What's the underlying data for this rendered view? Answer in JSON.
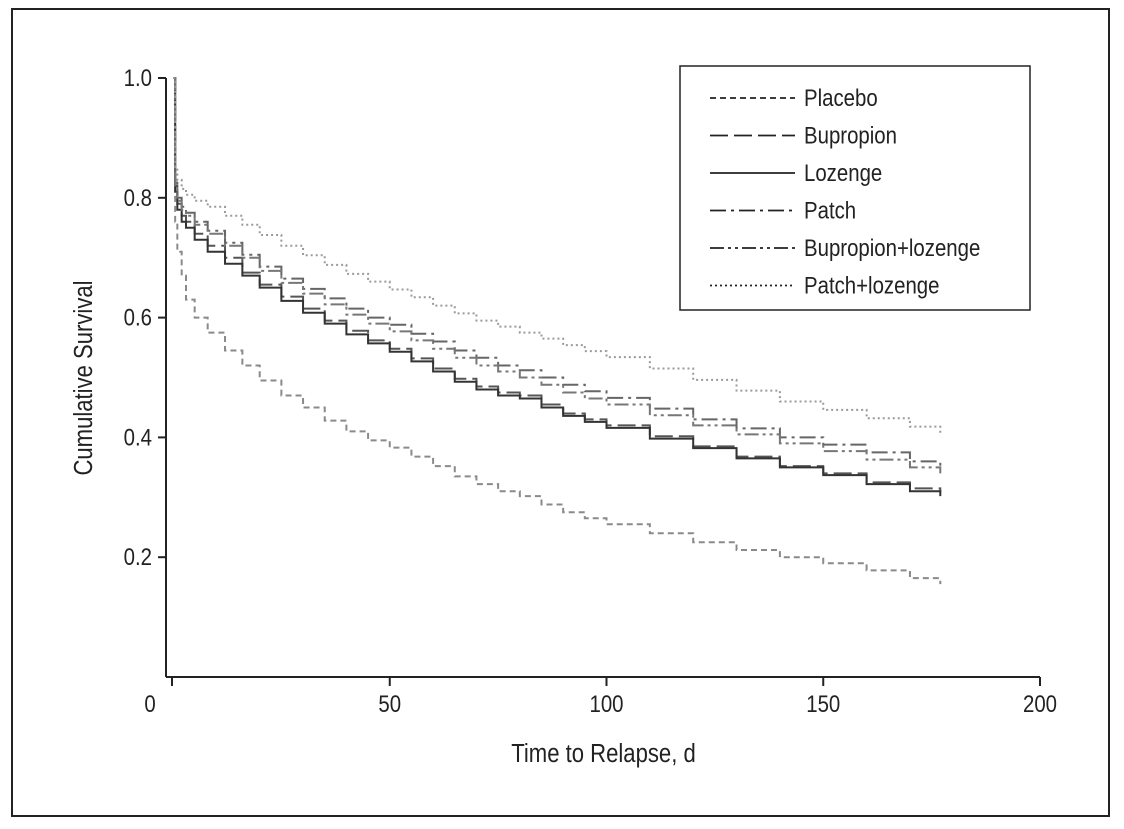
{
  "chart_data": {
    "type": "line",
    "xlabel": "Time to Relapse, d",
    "ylabel": "Cumulative Survival",
    "xlim": [
      0,
      200
    ],
    "ylim": [
      0.0,
      1.0
    ],
    "x_ticks": [
      "0",
      "50",
      "100",
      "150",
      "200"
    ],
    "y_ticks": [
      "0.2",
      "0.4",
      "0.6",
      "0.8",
      "1.0"
    ],
    "legend_position": "top-right",
    "grid": false,
    "series": [
      {
        "name": "Placebo",
        "dash": "dashed-short",
        "color": "#8a8a8a",
        "x": [
          0,
          0.5,
          1,
          2,
          3,
          5,
          8,
          12,
          16,
          20,
          25,
          30,
          35,
          40,
          45,
          50,
          55,
          60,
          65,
          70,
          75,
          80,
          85,
          90,
          95,
          100,
          110,
          120,
          130,
          140,
          150,
          160,
          170,
          177
        ],
        "y": [
          1.0,
          0.76,
          0.71,
          0.67,
          0.63,
          0.6,
          0.575,
          0.545,
          0.52,
          0.495,
          0.47,
          0.45,
          0.428,
          0.41,
          0.395,
          0.383,
          0.368,
          0.352,
          0.335,
          0.322,
          0.31,
          0.302,
          0.288,
          0.275,
          0.265,
          0.255,
          0.24,
          0.225,
          0.212,
          0.2,
          0.19,
          0.178,
          0.165,
          0.155
        ]
      },
      {
        "name": "Bupropion",
        "dash": "dashed-long",
        "color": "#555555",
        "x": [
          0,
          0.5,
          1,
          2,
          3,
          5,
          8,
          12,
          16,
          20,
          25,
          30,
          35,
          40,
          45,
          50,
          55,
          60,
          65,
          70,
          75,
          80,
          85,
          90,
          95,
          100,
          110,
          120,
          130,
          140,
          150,
          160,
          170,
          177
        ],
        "y": [
          1.0,
          0.82,
          0.79,
          0.77,
          0.76,
          0.74,
          0.72,
          0.7,
          0.675,
          0.655,
          0.635,
          0.615,
          0.595,
          0.578,
          0.562,
          0.548,
          0.532,
          0.515,
          0.498,
          0.485,
          0.475,
          0.47,
          0.455,
          0.44,
          0.43,
          0.42,
          0.402,
          0.385,
          0.368,
          0.352,
          0.34,
          0.325,
          0.315,
          0.308
        ]
      },
      {
        "name": "Lozenge",
        "dash": "solid",
        "color": "#333333",
        "x": [
          0,
          0.5,
          1,
          2,
          3,
          5,
          8,
          12,
          16,
          20,
          25,
          30,
          35,
          40,
          45,
          50,
          55,
          60,
          65,
          70,
          75,
          80,
          85,
          90,
          95,
          100,
          110,
          120,
          130,
          140,
          150,
          160,
          170,
          177
        ],
        "y": [
          1.0,
          0.81,
          0.78,
          0.76,
          0.75,
          0.73,
          0.71,
          0.69,
          0.67,
          0.65,
          0.628,
          0.608,
          0.59,
          0.572,
          0.557,
          0.543,
          0.527,
          0.51,
          0.493,
          0.48,
          0.47,
          0.465,
          0.45,
          0.436,
          0.426,
          0.416,
          0.398,
          0.382,
          0.365,
          0.35,
          0.337,
          0.322,
          0.31,
          0.302
        ]
      },
      {
        "name": "Patch",
        "dash": "dash-dot",
        "color": "#666666",
        "x": [
          0,
          0.5,
          1,
          2,
          3,
          5,
          8,
          12,
          16,
          20,
          25,
          30,
          35,
          40,
          45,
          50,
          55,
          60,
          65,
          70,
          75,
          80,
          85,
          90,
          95,
          100,
          110,
          120,
          130,
          140,
          150,
          160,
          170,
          177
        ],
        "y": [
          1.0,
          0.83,
          0.8,
          0.785,
          0.775,
          0.76,
          0.745,
          0.725,
          0.705,
          0.685,
          0.665,
          0.648,
          0.632,
          0.615,
          0.6,
          0.588,
          0.573,
          0.56,
          0.545,
          0.533,
          0.52,
          0.512,
          0.5,
          0.488,
          0.477,
          0.466,
          0.448,
          0.43,
          0.415,
          0.4,
          0.388,
          0.375,
          0.36,
          0.35
        ]
      },
      {
        "name": "Bupropion+lozenge",
        "dash": "dash-dot-dot",
        "color": "#777777",
        "x": [
          0,
          0.5,
          1,
          2,
          3,
          5,
          8,
          12,
          16,
          20,
          25,
          30,
          35,
          40,
          45,
          50,
          55,
          60,
          65,
          70,
          75,
          80,
          85,
          90,
          95,
          100,
          110,
          120,
          130,
          140,
          150,
          160,
          170,
          177
        ],
        "y": [
          1.0,
          0.82,
          0.795,
          0.78,
          0.77,
          0.755,
          0.74,
          0.72,
          0.7,
          0.678,
          0.658,
          0.64,
          0.622,
          0.605,
          0.59,
          0.577,
          0.562,
          0.548,
          0.533,
          0.52,
          0.51,
          0.5,
          0.488,
          0.475,
          0.465,
          0.455,
          0.437,
          0.42,
          0.405,
          0.39,
          0.377,
          0.363,
          0.35,
          0.34
        ]
      },
      {
        "name": "Patch+lozenge",
        "dash": "dotted",
        "color": "#9a9a9a",
        "x": [
          0,
          0.5,
          1,
          2,
          3,
          5,
          8,
          12,
          16,
          20,
          25,
          30,
          35,
          40,
          45,
          50,
          55,
          60,
          65,
          70,
          75,
          80,
          85,
          90,
          95,
          100,
          110,
          120,
          130,
          140,
          150,
          160,
          170,
          177
        ],
        "y": [
          1.0,
          0.85,
          0.83,
          0.815,
          0.805,
          0.795,
          0.785,
          0.77,
          0.755,
          0.738,
          0.72,
          0.704,
          0.688,
          0.673,
          0.66,
          0.647,
          0.634,
          0.62,
          0.607,
          0.595,
          0.585,
          0.575,
          0.565,
          0.554,
          0.544,
          0.534,
          0.515,
          0.496,
          0.478,
          0.46,
          0.446,
          0.432,
          0.418,
          0.405
        ]
      }
    ]
  }
}
